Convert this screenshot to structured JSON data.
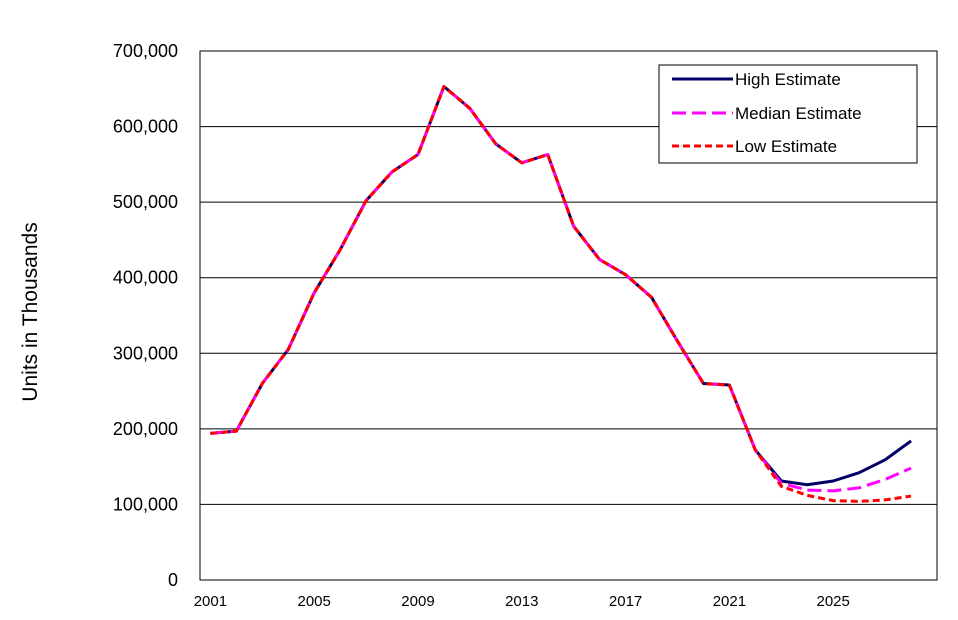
{
  "chart_data": {
    "type": "line",
    "title": "",
    "xlabel": "",
    "ylabel": "Units in Thousands",
    "x": [
      2001,
      2002,
      2003,
      2004,
      2005,
      2006,
      2007,
      2008,
      2009,
      2010,
      2011,
      2012,
      2013,
      2014,
      2015,
      2016,
      2017,
      2018,
      2019,
      2020,
      2021,
      2022,
      2023,
      2024,
      2025,
      2026,
      2027,
      2028
    ],
    "xticks": [
      "2001",
      "2005",
      "2009",
      "2013",
      "2017",
      "2021",
      "2025"
    ],
    "yticks": [
      "0",
      "100,000",
      "200,000",
      "300,000",
      "400,000",
      "500,000",
      "600,000",
      "700,000"
    ],
    "ylim": [
      0,
      700000
    ],
    "grid": true,
    "legend_position": "top-right",
    "series": [
      {
        "name": "High Estimate",
        "color": "#000066",
        "style": "solid",
        "values": [
          194000,
          197000,
          260000,
          305000,
          380000,
          437000,
          502000,
          540000,
          563000,
          653000,
          624000,
          577000,
          552000,
          563000,
          468000,
          424000,
          404000,
          374000,
          316000,
          260000,
          258000,
          172000,
          131000,
          126000,
          131000,
          142000,
          159000,
          184000
        ]
      },
      {
        "name": "Median Estimate",
        "color": "#ff00ff",
        "style": "dash",
        "values": [
          194000,
          197000,
          260000,
          305000,
          380000,
          437000,
          502000,
          540000,
          563000,
          653000,
          624000,
          577000,
          552000,
          563000,
          468000,
          424000,
          404000,
          374000,
          316000,
          260000,
          258000,
          172000,
          128000,
          119000,
          118000,
          122000,
          133000,
          148000
        ]
      },
      {
        "name": "Low Estimate",
        "color": "#ff0000",
        "style": "dot",
        "values": [
          194000,
          197000,
          260000,
          305000,
          380000,
          437000,
          502000,
          540000,
          563000,
          653000,
          624000,
          577000,
          552000,
          563000,
          468000,
          424000,
          404000,
          374000,
          316000,
          260000,
          258000,
          172000,
          124000,
          112000,
          105000,
          104000,
          106000,
          111000
        ]
      }
    ]
  }
}
